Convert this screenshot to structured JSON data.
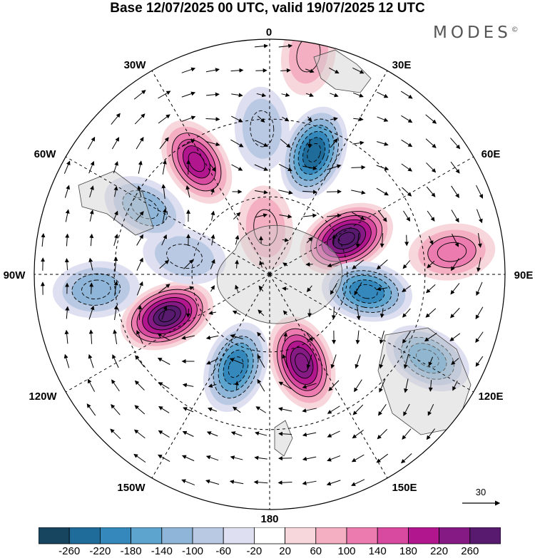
{
  "title": "Base 12/07/2025 00 UTC, valid 19/07/2025 12 UTC",
  "brand": "MODES",
  "brand_mark": "©",
  "longitude_labels": {
    "lon_0": "0",
    "lon_30e": "30E",
    "lon_60e": "60E",
    "lon_90e": "90E",
    "lon_120e": "120E",
    "lon_150e": "150E",
    "lon_180": "180",
    "lon_150w": "150W",
    "lon_120w": "120W",
    "lon_90w": "90W",
    "lon_60w": "60W",
    "lon_30w": "30W"
  },
  "reference_vector": {
    "value": "30"
  },
  "colorbar": {
    "ticks": [
      "-260",
      "-220",
      "-180",
      "-140",
      "-100",
      "-60",
      "-20",
      "20",
      "60",
      "100",
      "140",
      "180",
      "220",
      "260"
    ],
    "colors": [
      "#17445f",
      "#1f6b99",
      "#3488bc",
      "#5da4cf",
      "#8fb6d8",
      "#bac9e3",
      "#dedff0",
      "#ffffff",
      "#f8d7dc",
      "#f4afc2",
      "#ec7cb0",
      "#d84a9f",
      "#b1168f",
      "#861a84",
      "#571a6f"
    ]
  },
  "anomaly_cells": [
    {
      "lon": 20,
      "colat": 0.55,
      "value": -240
    },
    {
      "lon": 65,
      "colat": 0.36,
      "value": 280
    },
    {
      "lon": 83,
      "colat": 0.78,
      "value": 120
    },
    {
      "lon": 100,
      "colat": 0.42,
      "value": -180
    },
    {
      "lon": 118,
      "colat": 0.76,
      "value": -150
    },
    {
      "lon": 160,
      "colat": 0.4,
      "value": 250
    },
    {
      "lon": -160,
      "colat": 0.42,
      "value": -200
    },
    {
      "lon": -112,
      "colat": 0.47,
      "value": 260
    },
    {
      "lon": -95,
      "colat": 0.74,
      "value": -120
    },
    {
      "lon": -78,
      "colat": 0.37,
      "value": -80
    },
    {
      "lon": -62,
      "colat": 0.6,
      "value": -110
    },
    {
      "lon": -33,
      "colat": 0.57,
      "value": 190
    },
    {
      "lon": -5,
      "colat": 0.2,
      "value": 80
    },
    {
      "lon": -3,
      "colat": 0.62,
      "value": -80
    },
    {
      "lon": 10,
      "colat": 0.95,
      "value": 60
    }
  ]
}
